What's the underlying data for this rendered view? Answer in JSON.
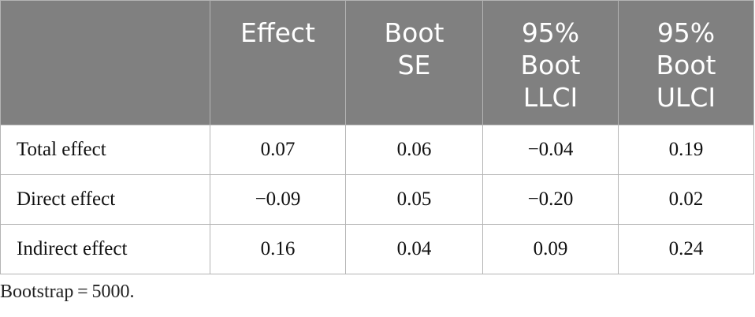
{
  "table": {
    "headers": [
      "",
      "Effect",
      "Boot SE",
      "95% Boot LLCI",
      "95% Boot ULCI"
    ],
    "header_lines": [
      [],
      [
        "Effect"
      ],
      [
        "Boot",
        "SE"
      ],
      [
        "95%",
        "Boot",
        "LLCI"
      ],
      [
        "95%",
        "Boot",
        "ULCI"
      ]
    ],
    "rows": [
      {
        "label": "Total effect",
        "effect": "0.07",
        "boot_se": "0.06",
        "llci": "−0.04",
        "ulci": "0.19"
      },
      {
        "label": "Direct effect",
        "effect": "−0.09",
        "boot_se": "0.05",
        "llci": "−0.20",
        "ulci": "0.02"
      },
      {
        "label": "Indirect effect",
        "effect": "0.16",
        "boot_se": "0.04",
        "llci": "0.09",
        "ulci": "0.24"
      }
    ],
    "header_bg": "#808080",
    "header_fg": "#ffffff"
  },
  "footnote": "Bootstrap = 5000."
}
